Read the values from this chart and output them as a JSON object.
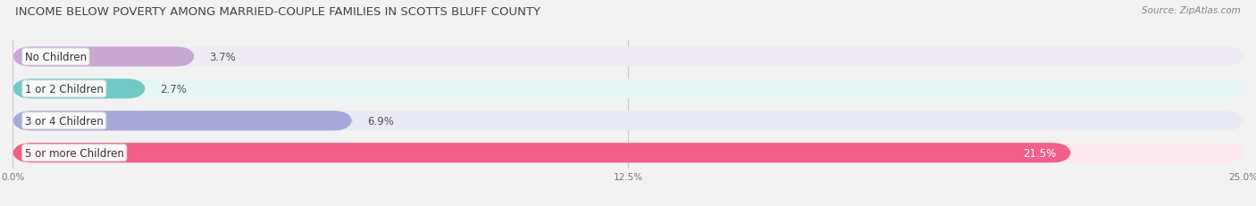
{
  "title": "INCOME BELOW POVERTY AMONG MARRIED-COUPLE FAMILIES IN SCOTTS BLUFF COUNTY",
  "source": "Source: ZipAtlas.com",
  "categories": [
    "No Children",
    "1 or 2 Children",
    "3 or 4 Children",
    "5 or more Children"
  ],
  "values": [
    3.7,
    2.7,
    6.9,
    21.5
  ],
  "bar_colors": [
    "#c9a8d4",
    "#72c8c4",
    "#a8a8d8",
    "#f0608a"
  ],
  "bar_bg_colors": [
    "#eeebf2",
    "#e8f5f5",
    "#eaeaf5",
    "#fde8ef"
  ],
  "value_colors": [
    "#555555",
    "#555555",
    "#555555",
    "#ffffff"
  ],
  "xlim": [
    0,
    25.0
  ],
  "xticks": [
    0.0,
    12.5,
    25.0
  ],
  "xticklabels": [
    "0.0%",
    "12.5%",
    "25.0%"
  ],
  "figsize": [
    14.06,
    2.32
  ],
  "dpi": 100,
  "background_color": "#f2f2f2",
  "bar_height": 0.62,
  "label_fontsize": 8.5,
  "value_fontsize": 8.5,
  "title_fontsize": 9.5,
  "source_fontsize": 7.5
}
